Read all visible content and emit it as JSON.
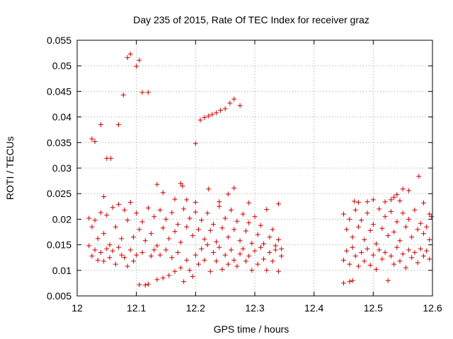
{
  "chart_data": {
    "type": "scatter",
    "title": "Day 235 of 2015, Rate Of TEC Index for receiver graz",
    "xlabel": "GPS time / hours",
    "ylabel": "ROTI / TECUs",
    "xlim": [
      12,
      12.6
    ],
    "ylim": [
      0.005,
      0.055
    ],
    "xticks": [
      "12",
      "12.1",
      "12.2",
      "12.3",
      "12.4",
      "12.5",
      "12.6"
    ],
    "xtick_values": [
      12,
      12.1,
      12.2,
      12.3,
      12.4,
      12.5,
      12.6
    ],
    "yticks": [
      "0.005",
      "0.01",
      "0.015",
      "0.02",
      "0.025",
      "0.03",
      "0.035",
      "0.04",
      "0.045",
      "0.05",
      "0.055"
    ],
    "ytick_values": [
      0.005,
      0.01,
      0.015,
      0.02,
      0.025,
      0.03,
      0.035,
      0.04,
      0.045,
      0.05,
      0.055
    ],
    "grid": true,
    "marker": "+",
    "series": [
      {
        "name": "ROTI",
        "color": "#cc0000",
        "points": [
          [
            12.09,
            0.0523
          ],
          [
            12.085,
            0.0516
          ],
          [
            12.1,
            0.0499
          ],
          [
            12.105,
            0.0511
          ],
          [
            12.11,
            0.0448
          ],
          [
            12.12,
            0.0448
          ],
          [
            12.078,
            0.0443
          ],
          [
            12.025,
            0.0357
          ],
          [
            12.03,
            0.0352
          ],
          [
            12.04,
            0.0385
          ],
          [
            12.07,
            0.0385
          ],
          [
            12.05,
            0.0319
          ],
          [
            12.057,
            0.0319
          ],
          [
            12.2,
            0.0348
          ],
          [
            12.208,
            0.0394
          ],
          [
            12.215,
            0.0399
          ],
          [
            12.222,
            0.0402
          ],
          [
            12.228,
            0.0405
          ],
          [
            12.235,
            0.0408
          ],
          [
            12.242,
            0.0413
          ],
          [
            12.25,
            0.0416
          ],
          [
            12.258,
            0.0427
          ],
          [
            12.265,
            0.0435
          ],
          [
            12.275,
            0.0422
          ],
          [
            12.577,
            0.0284
          ],
          [
            12.56,
            0.0256
          ],
          [
            12.55,
            0.0259
          ],
          [
            12.54,
            0.0248
          ],
          [
            12.535,
            0.0243
          ],
          [
            12.53,
            0.0238
          ],
          [
            12.5,
            0.0238
          ],
          [
            12.49,
            0.0234
          ],
          [
            12.475,
            0.0233
          ],
          [
            12.468,
            0.0235
          ],
          [
            12.52,
            0.0234
          ],
          [
            12.545,
            0.0236
          ],
          [
            12.585,
            0.0232
          ],
          [
            12.595,
            0.021
          ],
          [
            12.598,
            0.0205
          ],
          [
            12.135,
            0.0268
          ],
          [
            12.175,
            0.027
          ],
          [
            12.178,
            0.0265
          ],
          [
            12.222,
            0.0259
          ],
          [
            12.265,
            0.0261
          ],
          [
            12.255,
            0.0249
          ],
          [
            12.145,
            0.0252
          ],
          [
            12.045,
            0.0244
          ],
          [
            12.165,
            0.0239
          ],
          [
            12.185,
            0.0238
          ],
          [
            12.2,
            0.0233
          ],
          [
            12.24,
            0.0234
          ],
          [
            12.29,
            0.0232
          ],
          [
            12.34,
            0.023
          ],
          [
            12.02,
            0.0202
          ],
          [
            12.025,
            0.0185
          ],
          [
            12.03,
            0.0198
          ],
          [
            12.035,
            0.0162
          ],
          [
            12.04,
            0.0213
          ],
          [
            12.045,
            0.0172
          ],
          [
            12.05,
            0.0208
          ],
          [
            12.055,
            0.015
          ],
          [
            12.06,
            0.0223
          ],
          [
            12.065,
            0.0185
          ],
          [
            12.07,
            0.0229
          ],
          [
            12.075,
            0.0162
          ],
          [
            12.08,
            0.0218
          ],
          [
            12.085,
            0.0198
          ],
          [
            12.09,
            0.0233
          ],
          [
            12.095,
            0.0165
          ],
          [
            12.1,
            0.0212
          ],
          [
            12.105,
            0.018
          ],
          [
            12.11,
            0.0195
          ],
          [
            12.115,
            0.0158
          ],
          [
            12.12,
            0.0222
          ],
          [
            12.125,
            0.0172
          ],
          [
            12.13,
            0.0205
          ],
          [
            12.135,
            0.0148
          ],
          [
            12.14,
            0.0218
          ],
          [
            12.145,
            0.0183
          ],
          [
            12.15,
            0.02
          ],
          [
            12.155,
            0.0162
          ],
          [
            12.16,
            0.0213
          ],
          [
            12.165,
            0.0176
          ],
          [
            12.17,
            0.019
          ],
          [
            12.175,
            0.0155
          ],
          [
            12.18,
            0.022
          ],
          [
            12.185,
            0.0185
          ],
          [
            12.19,
            0.0202
          ],
          [
            12.195,
            0.0168
          ],
          [
            12.2,
            0.0214
          ],
          [
            12.205,
            0.018
          ],
          [
            12.21,
            0.0198
          ],
          [
            12.215,
            0.0161
          ],
          [
            12.22,
            0.0212
          ],
          [
            12.225,
            0.0178
          ],
          [
            12.23,
            0.019
          ],
          [
            12.235,
            0.0156
          ],
          [
            12.24,
            0.0225
          ],
          [
            12.245,
            0.0183
          ],
          [
            12.25,
            0.0202
          ],
          [
            12.255,
            0.0165
          ],
          [
            12.26,
            0.0218
          ],
          [
            12.265,
            0.018
          ],
          [
            12.27,
            0.0196
          ],
          [
            12.275,
            0.0158
          ],
          [
            12.28,
            0.021
          ],
          [
            12.285,
            0.0177
          ],
          [
            12.29,
            0.0193
          ],
          [
            12.295,
            0.0153
          ],
          [
            12.3,
            0.0205
          ],
          [
            12.305,
            0.017
          ],
          [
            12.31,
            0.0188
          ],
          [
            12.315,
            0.0152
          ],
          [
            12.32,
            0.0219
          ],
          [
            12.325,
            0.0165
          ],
          [
            12.33,
            0.018
          ],
          [
            12.335,
            0.0148
          ],
          [
            12.34,
            0.016
          ],
          [
            12.345,
            0.0142
          ],
          [
            12.02,
            0.0148
          ],
          [
            12.025,
            0.0128
          ],
          [
            12.03,
            0.014
          ],
          [
            12.035,
            0.012
          ],
          [
            12.04,
            0.0135
          ],
          [
            12.045,
            0.0118
          ],
          [
            12.05,
            0.0142
          ],
          [
            12.055,
            0.0125
          ],
          [
            12.06,
            0.0138
          ],
          [
            12.065,
            0.0112
          ],
          [
            12.07,
            0.0145
          ],
          [
            12.075,
            0.013
          ],
          [
            12.08,
            0.0125
          ],
          [
            12.085,
            0.0108
          ],
          [
            12.09,
            0.014
          ],
          [
            12.095,
            0.0118
          ],
          [
            12.1,
            0.013
          ],
          [
            12.105,
            0.0072
          ],
          [
            12.11,
            0.0135
          ],
          [
            12.115,
            0.0071
          ],
          [
            12.12,
            0.0073
          ],
          [
            12.125,
            0.0128
          ],
          [
            12.13,
            0.014
          ],
          [
            12.135,
            0.0082
          ],
          [
            12.14,
            0.013
          ],
          [
            12.145,
            0.0085
          ],
          [
            12.15,
            0.014
          ],
          [
            12.155,
            0.009
          ],
          [
            12.16,
            0.0125
          ],
          [
            12.165,
            0.0098
          ],
          [
            12.17,
            0.0135
          ],
          [
            12.175,
            0.0105
          ],
          [
            12.18,
            0.0078
          ],
          [
            12.185,
            0.012
          ],
          [
            12.19,
            0.01
          ],
          [
            12.195,
            0.0088
          ],
          [
            12.2,
            0.013
          ],
          [
            12.205,
            0.0112
          ],
          [
            12.21,
            0.0142
          ],
          [
            12.215,
            0.012
          ],
          [
            12.22,
            0.015
          ],
          [
            12.225,
            0.0098
          ],
          [
            12.23,
            0.0135
          ],
          [
            12.235,
            0.0118
          ],
          [
            12.24,
            0.0145
          ],
          [
            12.245,
            0.0102
          ],
          [
            12.25,
            0.013
          ],
          [
            12.255,
            0.0112
          ],
          [
            12.26,
            0.014
          ],
          [
            12.265,
            0.012
          ],
          [
            12.27,
            0.0108
          ],
          [
            12.275,
            0.0132
          ],
          [
            12.28,
            0.0142
          ],
          [
            12.285,
            0.0118
          ],
          [
            12.29,
            0.0128
          ],
          [
            12.295,
            0.01
          ],
          [
            12.3,
            0.0138
          ],
          [
            12.305,
            0.0112
          ],
          [
            12.31,
            0.0145
          ],
          [
            12.315,
            0.0122
          ],
          [
            12.32,
            0.01
          ],
          [
            12.325,
            0.0135
          ],
          [
            12.33,
            0.0118
          ],
          [
            12.335,
            0.014
          ],
          [
            12.34,
            0.0098
          ],
          [
            12.345,
            0.0128
          ],
          [
            12.45,
            0.021
          ],
          [
            12.455,
            0.018
          ],
          [
            12.46,
            0.02
          ],
          [
            12.465,
            0.0165
          ],
          [
            12.47,
            0.0218
          ],
          [
            12.475,
            0.0185
          ],
          [
            12.48,
            0.0198
          ],
          [
            12.485,
            0.016
          ],
          [
            12.49,
            0.0212
          ],
          [
            12.495,
            0.0178
          ],
          [
            12.5,
            0.019
          ],
          [
            12.505,
            0.0152
          ],
          [
            12.51,
            0.022
          ],
          [
            12.515,
            0.0182
          ],
          [
            12.52,
            0.0205
          ],
          [
            12.525,
            0.0168
          ],
          [
            12.53,
            0.0215
          ],
          [
            12.535,
            0.0175
          ],
          [
            12.54,
            0.0195
          ],
          [
            12.545,
            0.0158
          ],
          [
            12.55,
            0.0212
          ],
          [
            12.555,
            0.0185
          ],
          [
            12.56,
            0.02
          ],
          [
            12.565,
            0.0165
          ],
          [
            12.57,
            0.0218
          ],
          [
            12.575,
            0.018
          ],
          [
            12.58,
            0.0192
          ],
          [
            12.585,
            0.0172
          ],
          [
            12.59,
            0.0185
          ],
          [
            12.595,
            0.016
          ],
          [
            12.45,
            0.012
          ],
          [
            12.455,
            0.0138
          ],
          [
            12.46,
            0.0112
          ],
          [
            12.465,
            0.0145
          ],
          [
            12.47,
            0.0128
          ],
          [
            12.475,
            0.0108
          ],
          [
            12.48,
            0.0135
          ],
          [
            12.485,
            0.0118
          ],
          [
            12.49,
            0.0142
          ],
          [
            12.495,
            0.011
          ],
          [
            12.5,
            0.013
          ],
          [
            12.505,
            0.0102
          ],
          [
            12.51,
            0.014
          ],
          [
            12.515,
            0.0122
          ],
          [
            12.52,
            0.0135
          ],
          [
            12.525,
            0.008
          ],
          [
            12.53,
            0.0128
          ],
          [
            12.535,
            0.0112
          ],
          [
            12.54,
            0.0145
          ],
          [
            12.545,
            0.0118
          ],
          [
            12.55,
            0.0132
          ],
          [
            12.555,
            0.0105
          ],
          [
            12.56,
            0.014
          ],
          [
            12.565,
            0.0125
          ],
          [
            12.57,
            0.0135
          ],
          [
            12.575,
            0.0115
          ],
          [
            12.58,
            0.0142
          ],
          [
            12.585,
            0.0128
          ],
          [
            12.59,
            0.0138
          ],
          [
            12.595,
            0.0122
          ],
          [
            12.45,
            0.0075
          ],
          [
            12.46,
            0.0078
          ],
          [
            12.465,
            0.008
          ]
        ]
      }
    ]
  }
}
